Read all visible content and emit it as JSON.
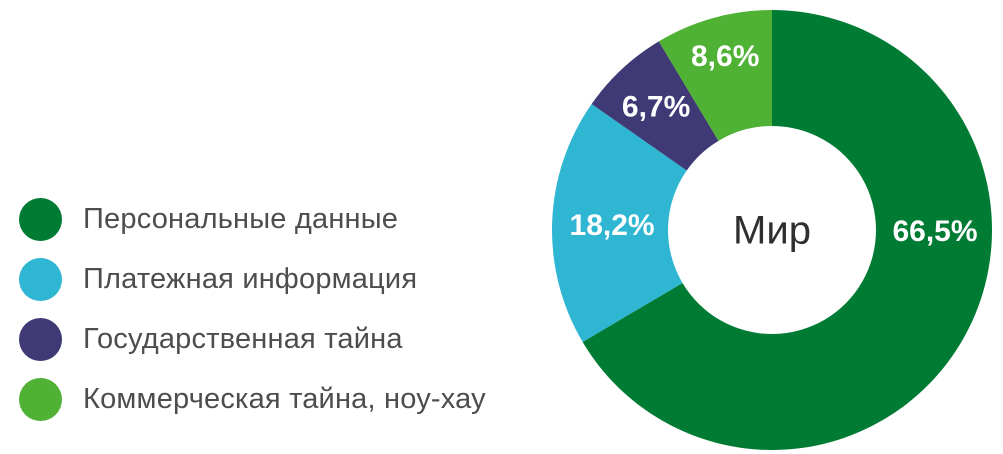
{
  "chart_data": {
    "type": "pie",
    "variant": "donut",
    "title": "",
    "center_label": "Мир",
    "units": "%",
    "legend_position": "left",
    "start_angle_deg": 0,
    "direction": "clockwise",
    "label_color": "#ffffff",
    "slices": [
      {
        "key": "personal-data",
        "label": "Персональные данные",
        "value": 66.5,
        "display": "66,5%",
        "color": "#007b33",
        "label_angle": 90,
        "label_radius": 163
      },
      {
        "key": "payment-info",
        "label": "Платежная информация",
        "value": 18.2,
        "display": "18,2%",
        "color": "#2eb6d3",
        "label_angle": 272,
        "label_radius": 160
      },
      {
        "key": "state-secret",
        "label": "Государственная тайна",
        "value": 6.7,
        "display": "6,7%",
        "color": "#3f3a75",
        "label_angle": 317,
        "label_radius": 170
      },
      {
        "key": "commercial-secret",
        "label": "Коммерческая тайна, ноу-хау",
        "value": 8.6,
        "display": "8,6%",
        "color": "#50b235",
        "label_angle": 345,
        "label_radius": 181
      }
    ]
  }
}
